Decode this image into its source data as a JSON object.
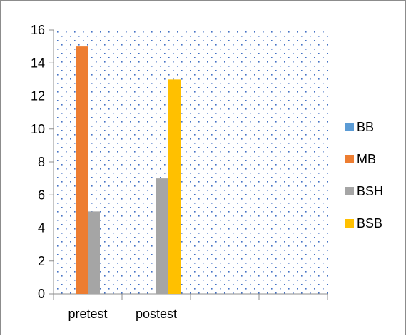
{
  "chart_data": {
    "type": "bar",
    "categories": [
      "pretest",
      "postest",
      "",
      ""
    ],
    "series": [
      {
        "name": "BB",
        "values": [
          0,
          0,
          0,
          0
        ],
        "color": "#5B9BD5"
      },
      {
        "name": "MB",
        "values": [
          15,
          0,
          0,
          0
        ],
        "color": "#ED7D31"
      },
      {
        "name": "BSH",
        "values": [
          5,
          7,
          0,
          0
        ],
        "color": "#A5A5A5"
      },
      {
        "name": "BSB",
        "values": [
          0,
          13,
          0,
          0
        ],
        "color": "#FFC000"
      }
    ],
    "y_ticks": [
      "0",
      "2",
      "4",
      "6",
      "8",
      "10",
      "12",
      "14",
      "16"
    ],
    "ylim": [
      0,
      16
    ],
    "title": "",
    "xlabel": "",
    "ylabel": "",
    "grid": false,
    "plot_background": "dotted",
    "legend_position": "right"
  }
}
